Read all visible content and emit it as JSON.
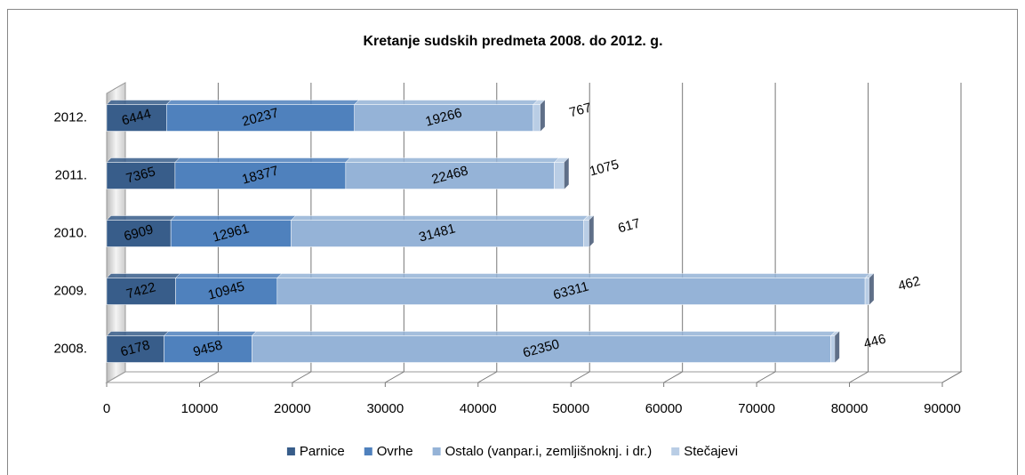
{
  "chart_data": {
    "type": "bar",
    "orientation": "horizontal",
    "stacked": true,
    "title": "Kretanje sudskih predmeta 2008. do 2012. g.",
    "categories": [
      "2008.",
      "2009.",
      "2010.",
      "2011.",
      "2012."
    ],
    "series": [
      {
        "name": "Parnice",
        "color": "#385d8a",
        "values": [
          6178,
          7422,
          6909,
          7365,
          6444
        ]
      },
      {
        "name": "Ovrhe",
        "color": "#4f81bd",
        "values": [
          9458,
          10945,
          12961,
          18377,
          20237
        ]
      },
      {
        "name": "Ostalo (vanpar.i, zemljišnoknj. i dr.)",
        "color": "#95b3d7",
        "values": [
          62350,
          63311,
          31481,
          22468,
          19266
        ]
      },
      {
        "name": "Stečajevi",
        "color": "#b9cde5",
        "values": [
          446,
          462,
          617,
          1075,
          767
        ]
      }
    ],
    "xlim": [
      0,
      90000
    ],
    "xticks": [
      0,
      10000,
      20000,
      30000,
      40000,
      50000,
      60000,
      70000,
      80000,
      90000
    ],
    "grid": true,
    "legend": "bottom"
  }
}
